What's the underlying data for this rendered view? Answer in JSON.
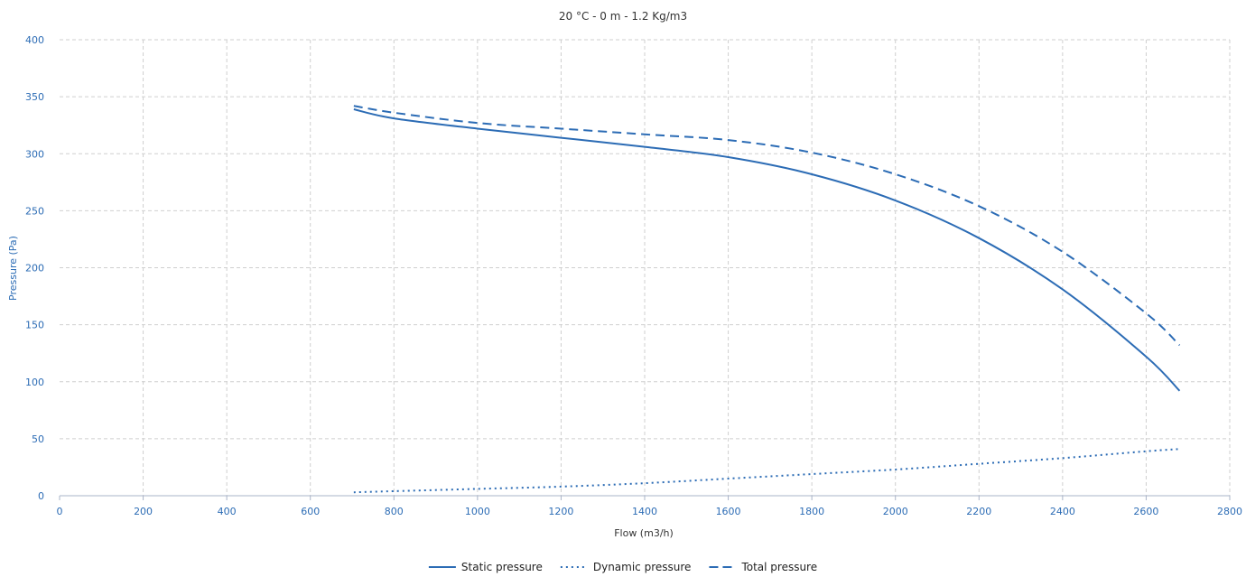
{
  "chart_data": {
    "type": "line",
    "subtitle": "20 °C - 0 m - 1.2 Kg/m3",
    "xlabel": "Flow (m3/h)",
    "ylabel": "Pressure (Pa)",
    "xlim": [
      0,
      2800
    ],
    "ylim": [
      0,
      400
    ],
    "x_ticks": [
      0,
      200,
      400,
      600,
      800,
      1000,
      1200,
      1400,
      1600,
      1800,
      2000,
      2200,
      2400,
      2600,
      2800
    ],
    "y_ticks": [
      0,
      50,
      100,
      150,
      200,
      250,
      300,
      350,
      400
    ],
    "grid": true,
    "legend_position": "bottom",
    "series": [
      {
        "name": "Static pressure",
        "style": "solid",
        "color": "#2c6cb5",
        "x": [
          704,
          800,
          1000,
          1200,
          1400,
          1600,
          1800,
          2000,
          2200,
          2400,
          2600,
          2680
        ],
        "y": [
          339,
          331,
          322,
          314,
          306,
          297,
          282,
          259,
          226,
          181,
          122,
          92
        ]
      },
      {
        "name": "Dynamic pressure",
        "style": "dotted",
        "color": "#2c6cb5",
        "x": [
          704,
          800,
          1000,
          1200,
          1400,
          1600,
          1800,
          2000,
          2200,
          2400,
          2600,
          2680
        ],
        "y": [
          3,
          4,
          6,
          8,
          11,
          15,
          19,
          23,
          28,
          33,
          39,
          41
        ]
      },
      {
        "name": "Total pressure",
        "style": "dashed",
        "color": "#2c6cb5",
        "x": [
          704,
          800,
          1000,
          1200,
          1400,
          1600,
          1800,
          2000,
          2200,
          2400,
          2600,
          2680
        ],
        "y": [
          342,
          336,
          327,
          322,
          317,
          312,
          301,
          282,
          254,
          214,
          160,
          132
        ]
      }
    ]
  }
}
